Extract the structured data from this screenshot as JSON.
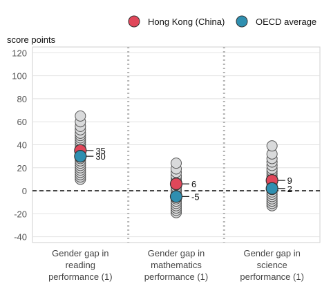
{
  "chart_data": {
    "type": "scatter",
    "ylabel": "score points",
    "ylim": [
      -45,
      125
    ],
    "yticks": [
      -40,
      -20,
      0,
      20,
      40,
      60,
      80,
      100,
      120
    ],
    "legend_position": "top-right",
    "grid": true,
    "categories": [
      "Gender gap in reading performance (1)",
      "Gender gap in mathematics performance (1)",
      "Gender gap in science performance (1)"
    ],
    "category_lines": [
      [
        "Gender gap in",
        "reading",
        "performance (1)"
      ],
      [
        "Gender gap in",
        "mathematics",
        "performance (1)"
      ],
      [
        "Gender gap in",
        "science",
        "performance (1)"
      ]
    ],
    "series": [
      {
        "name": "Hong Kong (China)",
        "color": "#e0475a",
        "values": [
          35,
          6,
          9
        ]
      },
      {
        "name": "OECD average",
        "color": "#2f8fb0",
        "values": [
          30,
          -5,
          2
        ]
      }
    ],
    "other_countries": [
      [
        10,
        12,
        14,
        16,
        18,
        20,
        22,
        24,
        26,
        28,
        30,
        32,
        34,
        36,
        38,
        40,
        42,
        44,
        46,
        48,
        50,
        53,
        56,
        60,
        65
      ],
      [
        -19,
        -17,
        -15,
        -13,
        -11,
        -9,
        -7,
        -5,
        -3,
        -1,
        1,
        3,
        5,
        7,
        9,
        11,
        13,
        16,
        19,
        24
      ],
      [
        -13,
        -11,
        -9,
        -7,
        -5,
        -3,
        -1,
        1,
        3,
        5,
        7,
        9,
        11,
        13,
        15,
        17,
        19,
        22,
        25,
        28,
        32,
        39
      ]
    ],
    "other_color": "#d9dadb"
  }
}
